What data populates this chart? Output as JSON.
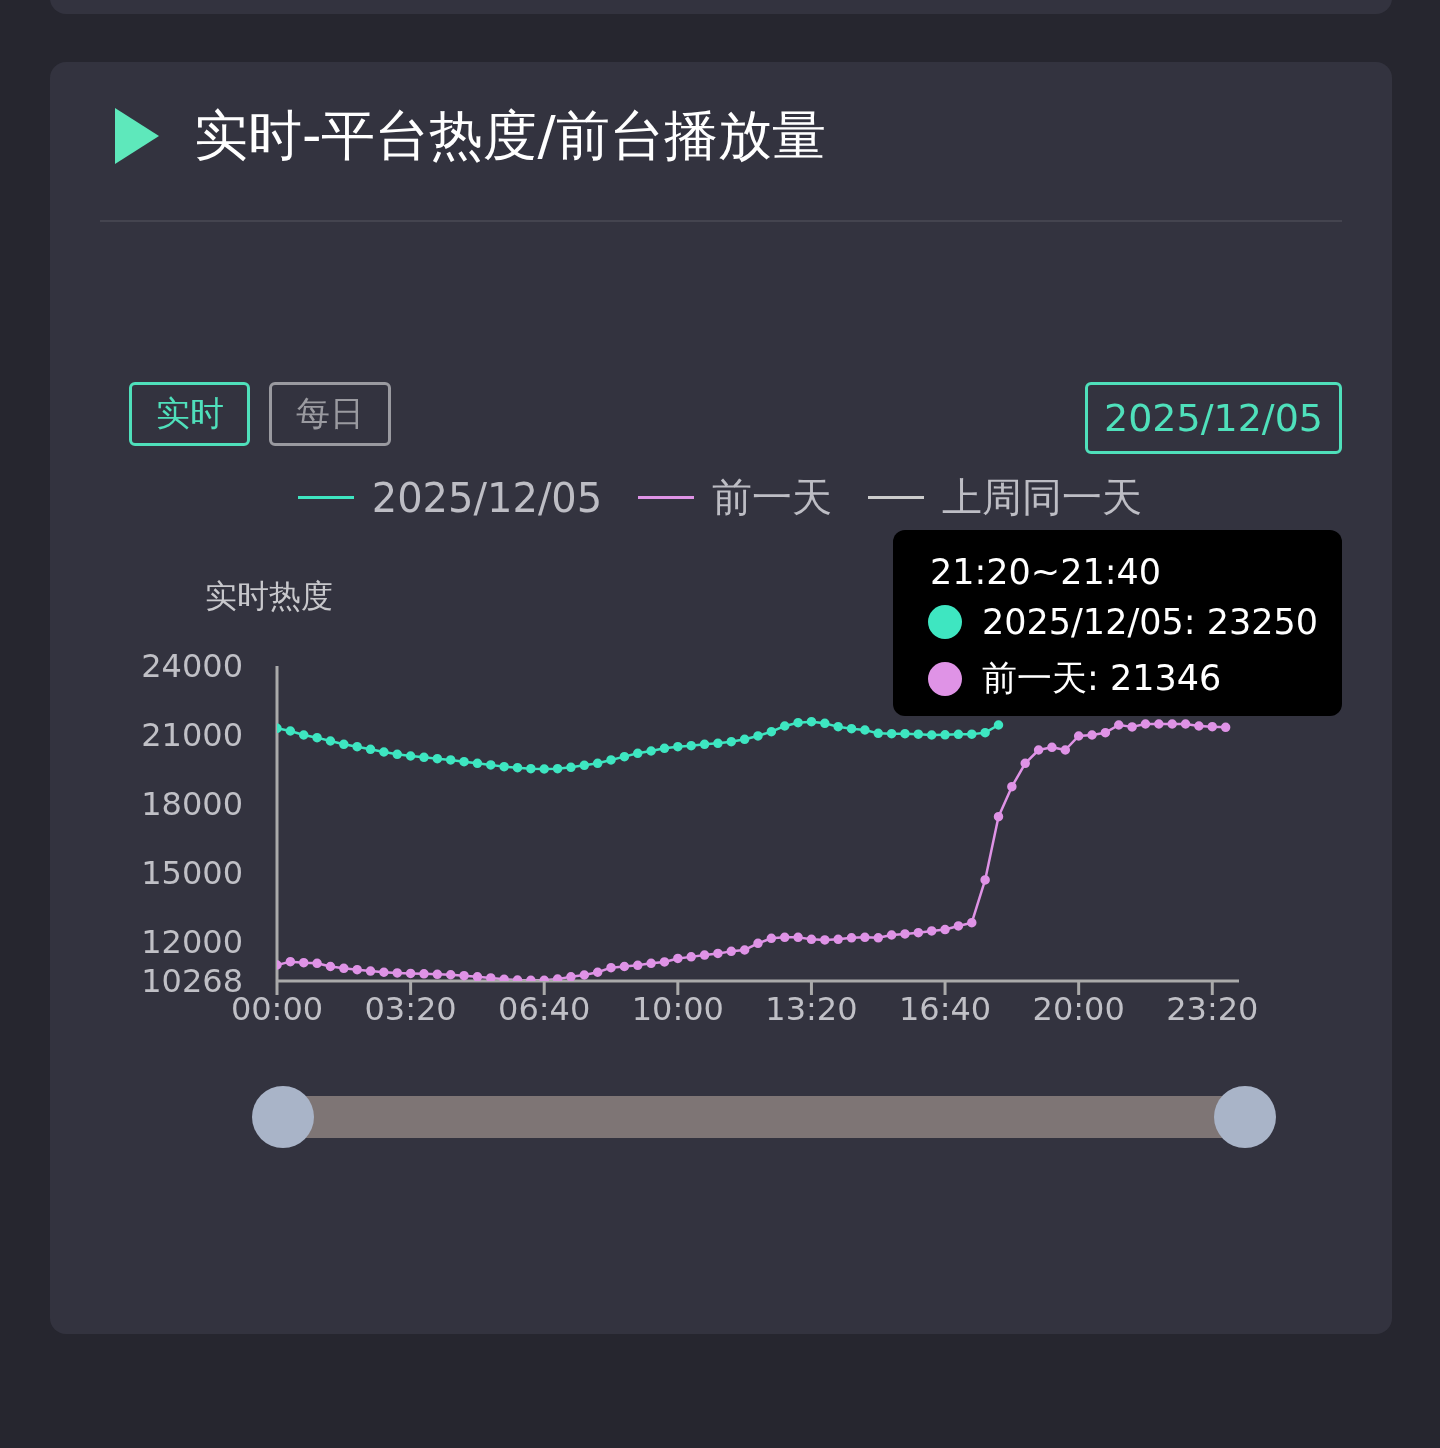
{
  "chart_data": {
    "type": "line",
    "title": "实时-平台热度/前台播放量",
    "ylabel": "实时热度",
    "annotations": [
      "实时",
      "每日",
      "2025/12/05",
      "21:20~21:40",
      "2025/12/05: 23250",
      "前一天: 21346"
    ],
    "categories": [
      "00:00",
      null,
      null,
      null,
      null,
      null,
      null,
      null,
      null,
      null,
      "03:20",
      null,
      null,
      null,
      null,
      null,
      null,
      null,
      null,
      null,
      "06:40",
      null,
      null,
      null,
      null,
      null,
      null,
      null,
      null,
      null,
      "10:00",
      null,
      null,
      null,
      null,
      null,
      null,
      null,
      null,
      null,
      "13:20",
      null,
      null,
      null,
      null,
      null,
      null,
      null,
      null,
      null,
      "16:40",
      null,
      null,
      null,
      null,
      null,
      null,
      null,
      null,
      null,
      "20:00",
      null,
      null,
      null,
      null,
      null,
      null,
      null,
      null,
      null,
      "23:20",
      null
    ],
    "series": [
      {
        "name": "2025/12/05",
        "color": "#3ee6c1",
        "values": [
          21284,
          21166,
          20992,
          20876,
          20731,
          20586,
          20484,
          20368,
          20251,
          20150,
          20077,
          20019,
          19961,
          19903,
          19830,
          19758,
          19685,
          19613,
          19569,
          19525,
          19510,
          19525,
          19583,
          19670,
          19758,
          19903,
          20048,
          20193,
          20295,
          20411,
          20484,
          20527,
          20586,
          20629,
          20700,
          20804,
          20950,
          21137,
          21384,
          21529,
          21573,
          21500,
          21355,
          21268,
          21210,
          21064,
          21050,
          21050,
          21030,
          20992,
          21000,
          21020,
          21030,
          21094,
          21428,
          null,
          null,
          null,
          null,
          null,
          null,
          null,
          null,
          null,
          null,
          null,
          null,
          null,
          null,
          null,
          null,
          null
        ]
      },
      {
        "name": "前一天",
        "color": "#df93e6",
        "values": [
          10966,
          11111,
          11067,
          11038,
          10900,
          10820,
          10760,
          10700,
          10650,
          10620,
          10600,
          10580,
          10560,
          10540,
          10500,
          10450,
          10400,
          10340,
          10312,
          10300,
          10300,
          10350,
          10450,
          10530,
          10650,
          10850,
          10900,
          10950,
          11040,
          11100,
          11250,
          11320,
          11400,
          11470,
          11560,
          11620,
          11910,
          12130,
          12170,
          12170,
          12087,
          12060,
          12087,
          12150,
          12170,
          12150,
          12274,
          12320,
          12375,
          12450,
          12510,
          12667,
          12810,
          14672,
          17431,
          18740,
          19758,
          20338,
          20455,
          20338,
          20949,
          20992,
          21094,
          21428,
          21346,
          21471,
          21471,
          21471,
          21471,
          21384,
          21355,
          21326
        ]
      },
      {
        "name": "上周同一天",
        "color": "#cccccc",
        "values": [
          null,
          null,
          null,
          null,
          null,
          null,
          null,
          null,
          null,
          null,
          null,
          null,
          null,
          null,
          null,
          null,
          null,
          null,
          null,
          null,
          null,
          null,
          null,
          null,
          null,
          null,
          null,
          null,
          null,
          null,
          null,
          null,
          null,
          null,
          null,
          null,
          null,
          null,
          null,
          null,
          null,
          null,
          null,
          null,
          null,
          null,
          null,
          null,
          null,
          null,
          null,
          null,
          null,
          null,
          null,
          null,
          null,
          null,
          null,
          null,
          null,
          null,
          null,
          null,
          null,
          null,
          null,
          null,
          null,
          null,
          null,
          null
        ]
      }
    ],
    "ylim": [
      10268,
      24000
    ],
    "yticks": [
      10268,
      12000,
      15000,
      18000,
      21000,
      24000
    ],
    "grid": false,
    "legend": "top",
    "marker": "circle",
    "line_style": "solid"
  }
}
